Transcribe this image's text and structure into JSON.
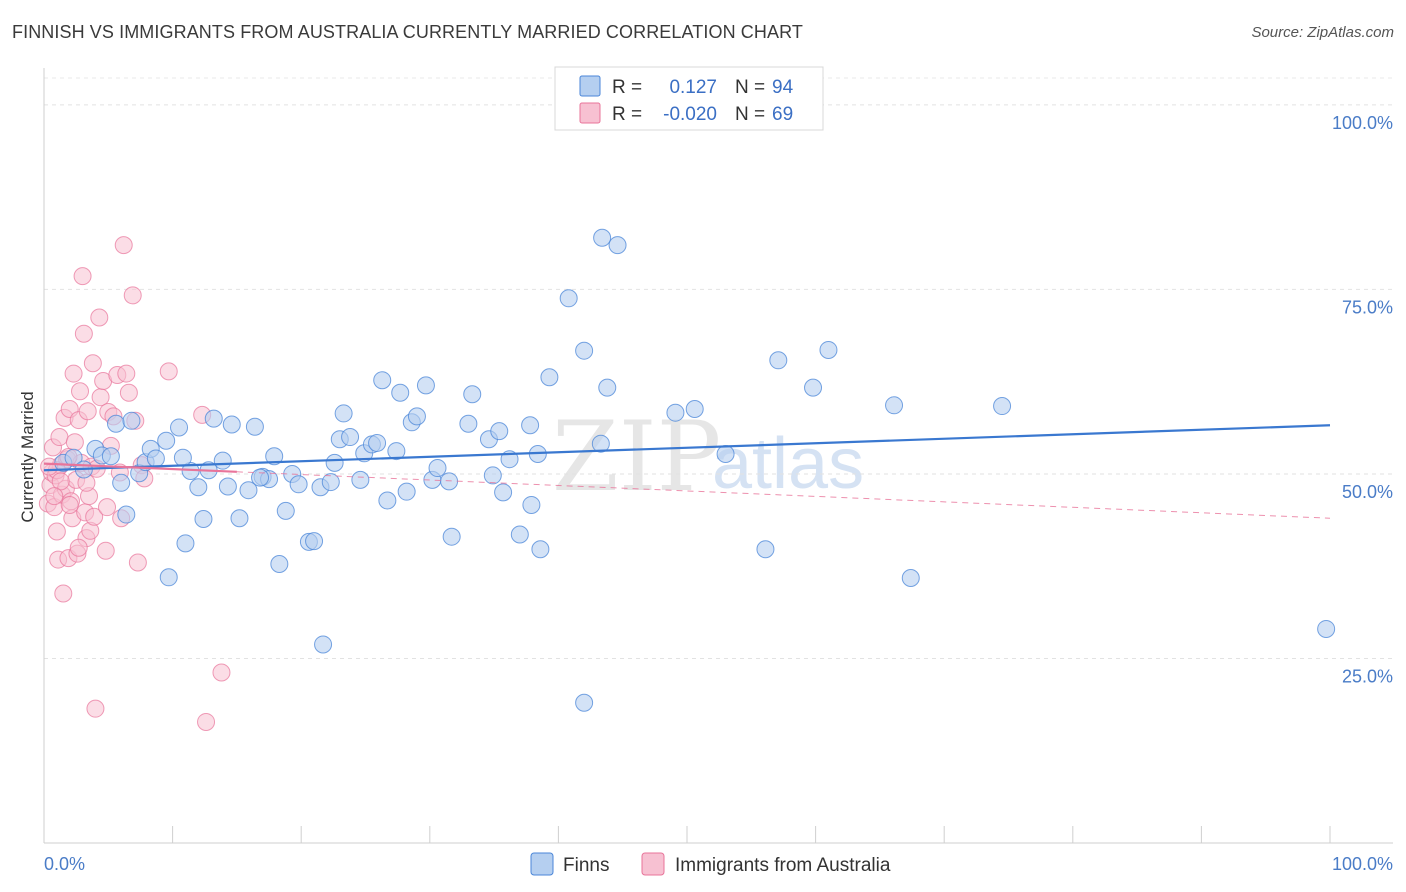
{
  "title": "FINNISH VS IMMIGRANTS FROM AUSTRALIA CURRENTLY MARRIED CORRELATION CHART",
  "source": "Source: ZipAtlas.com",
  "watermark": {
    "zip": "ZIP",
    "atlas": "atlas"
  },
  "colors": {
    "finns": "#4a86d8",
    "australia": "#e8749a",
    "finns_fill": "#b5cff0",
    "australia_fill": "#f7c1d2"
  },
  "legend": {
    "r_label": "R =",
    "n_label": "N =",
    "finns": {
      "r": "0.127",
      "n": "94"
    },
    "australia": {
      "r": "-0.020",
      "n": "69"
    }
  },
  "bottom_legend": {
    "finns": "Finns",
    "australia": "Immigrants from Australia"
  },
  "chart_data": {
    "type": "scatter",
    "title": "FINNISH VS IMMIGRANTS FROM AUSTRALIA CURRENTLY MARRIED CORRELATION CHART",
    "ylabel": "Currently Married",
    "xlabel": "",
    "xlim": [
      0,
      100
    ],
    "ylim": [
      0,
      105
    ],
    "x_tick_labels": [
      "0.0%",
      "100.0%"
    ],
    "y_tick_labels": [
      "25.0%",
      "50.0%",
      "75.0%",
      "100.0%"
    ],
    "y_ticks": [
      25,
      50,
      75,
      100
    ],
    "series": [
      {
        "name": "Finns",
        "r": 0.127,
        "n": 94,
        "trend": {
          "x": [
            0,
            100
          ],
          "y": [
            50.5,
            56.6
          ]
        },
        "points": [
          [
            1.5,
            51.5
          ],
          [
            2.3,
            52.2
          ],
          [
            3.1,
            50.6
          ],
          [
            4.0,
            53.4
          ],
          [
            4.5,
            52.5
          ],
          [
            5.2,
            52.4
          ],
          [
            5.6,
            56.8
          ],
          [
            6.0,
            48.8
          ],
          [
            6.4,
            44.5
          ],
          [
            6.8,
            57.2
          ],
          [
            7.4,
            50.1
          ],
          [
            7.9,
            51.6
          ],
          [
            8.3,
            53.4
          ],
          [
            8.7,
            52.1
          ],
          [
            9.5,
            54.5
          ],
          [
            9.7,
            36.0
          ],
          [
            10.5,
            56.3
          ],
          [
            11.0,
            40.6
          ],
          [
            11.4,
            50.4
          ],
          [
            12.0,
            48.2
          ],
          [
            12.4,
            43.9
          ],
          [
            12.8,
            50.5
          ],
          [
            13.2,
            57.5
          ],
          [
            13.9,
            51.8
          ],
          [
            14.3,
            48.3
          ],
          [
            14.6,
            56.7
          ],
          [
            15.2,
            44.0
          ],
          [
            15.9,
            47.8
          ],
          [
            16.4,
            56.4
          ],
          [
            17.0,
            49.6
          ],
          [
            17.5,
            49.3
          ],
          [
            17.9,
            52.4
          ],
          [
            18.3,
            37.8
          ],
          [
            18.8,
            45.0
          ],
          [
            19.3,
            50.0
          ],
          [
            19.8,
            48.6
          ],
          [
            20.6,
            40.8
          ],
          [
            21.0,
            40.9
          ],
          [
            21.5,
            48.2
          ],
          [
            21.7,
            26.9
          ],
          [
            22.3,
            48.9
          ],
          [
            23.0,
            54.7
          ],
          [
            23.3,
            58.2
          ],
          [
            23.8,
            55.0
          ],
          [
            24.6,
            49.2
          ],
          [
            24.9,
            52.8
          ],
          [
            25.5,
            54.0
          ],
          [
            25.9,
            54.2
          ],
          [
            26.3,
            62.7
          ],
          [
            26.7,
            46.4
          ],
          [
            27.4,
            53.1
          ],
          [
            27.7,
            61.0
          ],
          [
            28.2,
            47.6
          ],
          [
            28.6,
            57.0
          ],
          [
            29.0,
            57.8
          ],
          [
            30.2,
            49.2
          ],
          [
            30.6,
            50.8
          ],
          [
            31.5,
            49.0
          ],
          [
            31.7,
            41.5
          ],
          [
            33.0,
            56.8
          ],
          [
            33.3,
            60.8
          ],
          [
            34.6,
            54.7
          ],
          [
            34.9,
            49.8
          ],
          [
            35.4,
            55.8
          ],
          [
            35.7,
            47.5
          ],
          [
            37.0,
            41.8
          ],
          [
            37.8,
            56.6
          ],
          [
            37.9,
            45.8
          ],
          [
            38.4,
            52.7
          ],
          [
            38.6,
            39.8
          ],
          [
            39.3,
            63.1
          ],
          [
            40.8,
            73.8
          ],
          [
            42.0,
            66.7
          ],
          [
            43.3,
            54.1
          ],
          [
            43.4,
            82.0
          ],
          [
            43.8,
            61.7
          ],
          [
            44.6,
            81.0
          ],
          [
            49.1,
            58.3
          ],
          [
            50.6,
            58.8
          ],
          [
            53.0,
            52.7
          ],
          [
            56.1,
            39.8
          ],
          [
            57.1,
            65.4
          ],
          [
            59.8,
            61.7
          ],
          [
            61.0,
            66.8
          ],
          [
            66.1,
            59.3
          ],
          [
            67.4,
            35.9
          ],
          [
            74.5,
            59.2
          ],
          [
            99.7,
            29.0
          ],
          [
            42.0,
            19.0
          ],
          [
            16.8,
            49.5
          ],
          [
            10.8,
            52.2
          ],
          [
            29.7,
            62.0
          ],
          [
            36.2,
            52.0
          ],
          [
            22.6,
            51.5
          ]
        ]
      },
      {
        "name": "Immigrants from Australia",
        "r": -0.02,
        "n": 69,
        "trend": {
          "x": [
            0,
            100
          ],
          "y": [
            51.4,
            44.0
          ]
        },
        "points": [
          [
            0.3,
            46.0
          ],
          [
            0.5,
            48.5
          ],
          [
            0.6,
            50.2
          ],
          [
            0.7,
            53.6
          ],
          [
            0.8,
            45.5
          ],
          [
            0.9,
            49.8
          ],
          [
            1.0,
            42.2
          ],
          [
            1.1,
            38.4
          ],
          [
            1.2,
            55.0
          ],
          [
            1.3,
            51.2
          ],
          [
            1.4,
            47.2
          ],
          [
            1.5,
            33.8
          ],
          [
            1.6,
            57.6
          ],
          [
            1.7,
            48.0
          ],
          [
            1.8,
            52.0
          ],
          [
            1.9,
            38.6
          ],
          [
            2.0,
            58.8
          ],
          [
            2.1,
            46.3
          ],
          [
            2.2,
            44.0
          ],
          [
            2.3,
            63.6
          ],
          [
            2.4,
            54.3
          ],
          [
            2.5,
            49.2
          ],
          [
            2.6,
            39.2
          ],
          [
            2.7,
            57.3
          ],
          [
            2.8,
            61.2
          ],
          [
            2.9,
            51.5
          ],
          [
            3.0,
            76.8
          ],
          [
            3.1,
            69.0
          ],
          [
            3.2,
            44.8
          ],
          [
            3.3,
            41.3
          ],
          [
            3.4,
            58.5
          ],
          [
            3.5,
            47.0
          ],
          [
            3.6,
            42.3
          ],
          [
            3.7,
            51.0
          ],
          [
            3.8,
            65.0
          ],
          [
            3.9,
            44.2
          ],
          [
            4.0,
            18.2
          ],
          [
            4.1,
            50.7
          ],
          [
            4.3,
            71.2
          ],
          [
            4.4,
            60.4
          ],
          [
            4.6,
            62.6
          ],
          [
            4.8,
            39.6
          ],
          [
            4.9,
            45.5
          ],
          [
            5.0,
            58.4
          ],
          [
            5.2,
            53.8
          ],
          [
            5.4,
            57.8
          ],
          [
            5.7,
            63.4
          ],
          [
            5.9,
            50.2
          ],
          [
            6.2,
            81.0
          ],
          [
            6.4,
            63.6
          ],
          [
            6.6,
            61.0
          ],
          [
            6.9,
            74.2
          ],
          [
            7.1,
            57.2
          ],
          [
            7.3,
            38.0
          ],
          [
            7.6,
            51.2
          ],
          [
            7.8,
            49.4
          ],
          [
            9.7,
            63.9
          ],
          [
            12.3,
            58.0
          ],
          [
            12.6,
            16.4
          ],
          [
            13.8,
            23.1
          ],
          [
            1.0,
            50.5
          ],
          [
            1.3,
            49.0
          ],
          [
            0.4,
            51.0
          ],
          [
            2.0,
            45.8
          ],
          [
            0.8,
            47.0
          ],
          [
            1.9,
            52.3
          ],
          [
            3.3,
            48.8
          ],
          [
            6.0,
            44.0
          ],
          [
            2.7,
            40.0
          ]
        ]
      }
    ]
  }
}
